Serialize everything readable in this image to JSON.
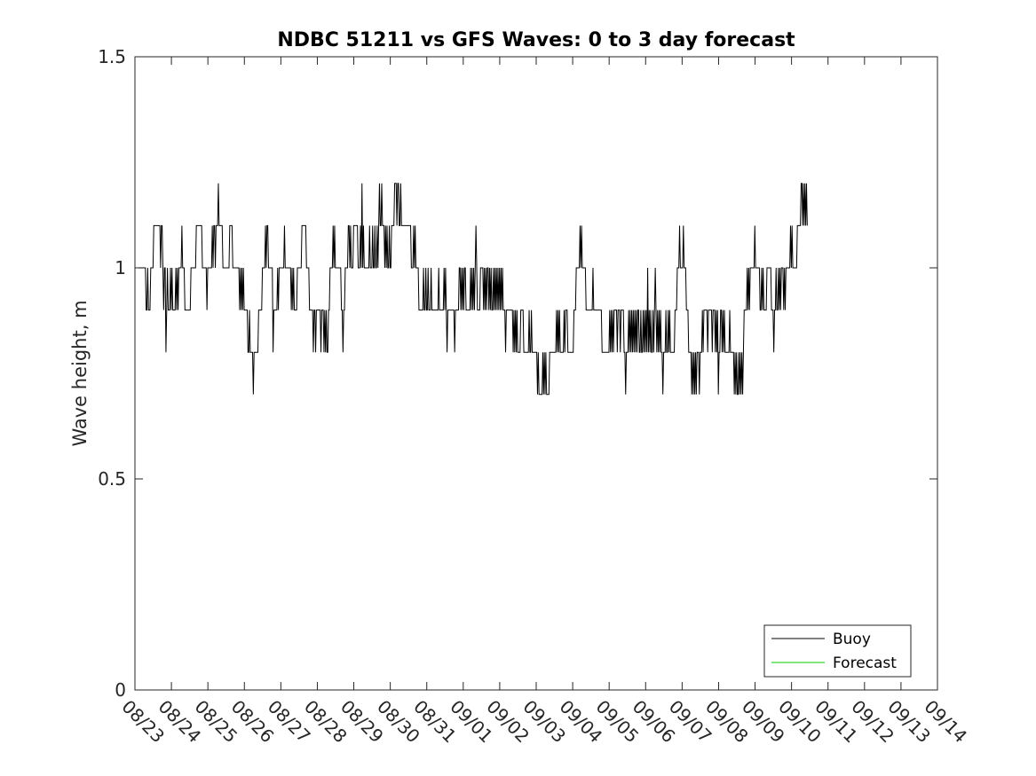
{
  "chart_data": {
    "type": "line",
    "title": "NDBC 51211 vs GFS Waves: 0 to 3 day forecast",
    "xlabel": "",
    "ylabel": "Wave height, m",
    "ylim": [
      0,
      1.5
    ],
    "yticks": [
      0,
      0.5,
      1,
      1.5
    ],
    "ytick_labels": [
      "0",
      "0.5",
      "1",
      "1.5"
    ],
    "xlim_days": [
      0,
      22
    ],
    "xtick_labels": [
      "08/23",
      "08/24",
      "08/25",
      "08/26",
      "08/27",
      "08/28",
      "08/29",
      "08/30",
      "08/31",
      "09/01",
      "09/02",
      "09/03",
      "09/04",
      "09/05",
      "09/06",
      "09/07",
      "09/08",
      "09/09",
      "09/10",
      "09/11",
      "09/12",
      "09/13",
      "09/14"
    ],
    "legend_position": "bottom-right",
    "series": [
      {
        "name": "Buoy",
        "color": "#000000",
        "x_start_day": 0.1,
        "x_step_day": 0.02083,
        "values": [
          1.0,
          1.0,
          1.0,
          1.0,
          1.0,
          1.0,
          1.0,
          1.0,
          1.0,
          1.0,
          0.9,
          0.9,
          1.0,
          0.9,
          0.9,
          0.9,
          1.0,
          1.0,
          1.0,
          1.0,
          1.1,
          1.1,
          1.1,
          1.1,
          1.1,
          1.1,
          1.1,
          1.1,
          1.1,
          1.0,
          1.1,
          1.1,
          1.0,
          0.9,
          1.0,
          1.0,
          0.8,
          0.9,
          1.0,
          0.9,
          0.9,
          0.9,
          1.0,
          0.9,
          1.0,
          0.9,
          0.9,
          0.9,
          0.9,
          1.0,
          0.9,
          1.0,
          0.9,
          1.0,
          1.0,
          1.0,
          1.0,
          1.1,
          1.0,
          1.0,
          1.0,
          0.9,
          0.9,
          0.9,
          0.9,
          0.9,
          0.9,
          0.9,
          0.9,
          1.0,
          1.0,
          1.0,
          1.0,
          1.0,
          1.0,
          1.0,
          1.1,
          1.1,
          1.1,
          1.1,
          1.1,
          1.1,
          1.1,
          1.1,
          1.0,
          1.0,
          1.0,
          1.0,
          1.0,
          1.0,
          0.9,
          1.0,
          1.0,
          1.0,
          1.0,
          1.0,
          1.0,
          1.1,
          1.0,
          1.1,
          1.1,
          1.0,
          1.1,
          1.1,
          1.1,
          1.2,
          1.1,
          1.1,
          1.1,
          1.1,
          1.1,
          1.0,
          1.0,
          1.0,
          1.0,
          1.0,
          1.0,
          1.0,
          1.0,
          1.0,
          1.1,
          1.1,
          1.1,
          1.1,
          1.0,
          1.0,
          1.0,
          1.0,
          1.0,
          1.0,
          1.0,
          1.0,
          1.0,
          0.9,
          1.0,
          0.9,
          1.0,
          0.9,
          1.0,
          0.9,
          0.9,
          0.9,
          0.9,
          0.9,
          0.8,
          0.8,
          0.9,
          0.8,
          0.8,
          0.8,
          0.8,
          0.7,
          0.8,
          0.8,
          0.8,
          0.8,
          0.8,
          0.8,
          0.9,
          0.9,
          0.9,
          0.9,
          0.9,
          1.0,
          1.0,
          1.0,
          1.0,
          1.1,
          1.0,
          1.1,
          1.1,
          1.0,
          1.0,
          1.0,
          1.0,
          1.0,
          1.0,
          0.8,
          0.9,
          0.9,
          0.9,
          0.9,
          0.9,
          1.0,
          0.9,
          1.0,
          1.0,
          1.0,
          1.0,
          1.0,
          1.0,
          1.0,
          1.1,
          1.0,
          1.0,
          1.0,
          1.0,
          1.0,
          1.0,
          1.0,
          1.0,
          0.9,
          1.0,
          0.9,
          1.0,
          0.9,
          0.9,
          0.9,
          0.9,
          1.0,
          1.0,
          1.0,
          1.0,
          1.0,
          1.0,
          1.1,
          1.1,
          1.1,
          1.1,
          1.1,
          1.1,
          1.0,
          1.0,
          1.0,
          1.0,
          0.9,
          0.9,
          0.9,
          0.9,
          0.9,
          0.8,
          0.9,
          0.9,
          0.8,
          0.9,
          0.9,
          0.9,
          0.9,
          0.9,
          0.9,
          0.8,
          0.9,
          0.9,
          0.9,
          0.8,
          0.9,
          0.8,
          0.9,
          0.8,
          0.8,
          0.9,
          0.9,
          1.0,
          1.0,
          1.0,
          1.0,
          1.1,
          1.0,
          1.1,
          1.0,
          1.0,
          1.0,
          1.0,
          1.0,
          1.0,
          1.0,
          1.0,
          0.9,
          0.9,
          0.8,
          0.9,
          0.9,
          1.0,
          1.0,
          1.0,
          1.0,
          1.1,
          1.1,
          1.0,
          1.1,
          1.0,
          1.0,
          1.0,
          1.1,
          1.1,
          1.1,
          1.1,
          1.1,
          1.1,
          1.0,
          1.0,
          1.0,
          1.1,
          1.0,
          1.2,
          1.0,
          1.1,
          1.0,
          1.0,
          1.0,
          1.0,
          1.0,
          1.0,
          1.0,
          1.1,
          1.0,
          1.0,
          1.0,
          1.1,
          1.0,
          1.0,
          1.1,
          1.0,
          1.0,
          1.1,
          1.0,
          1.1,
          1.2,
          1.1,
          1.1,
          1.2,
          1.1,
          1.1,
          1.1,
          1.0,
          1.1,
          1.0,
          1.1,
          1.0,
          1.0,
          1.1,
          1.0,
          1.0,
          1.1,
          1.1,
          1.1,
          1.1,
          1.2,
          1.2,
          1.2,
          1.1,
          1.2,
          1.2,
          1.1,
          1.1,
          1.2,
          1.1,
          1.1,
          1.1,
          1.1,
          1.1,
          1.1,
          1.1,
          1.1,
          1.1,
          1.1,
          1.1,
          1.1,
          1.1,
          1.0,
          1.0,
          1.0,
          1.1,
          1.0,
          1.1,
          1.0,
          1.0,
          1.0,
          1.0,
          0.9,
          0.9,
          0.9,
          0.9,
          0.9,
          0.9,
          1.0,
          0.9,
          0.9,
          1.0,
          0.9,
          0.9,
          1.0,
          0.9,
          0.9,
          0.9,
          1.0,
          0.9,
          0.9,
          0.9,
          0.9,
          0.9,
          0.9,
          0.9,
          0.9,
          0.9,
          1.0,
          0.9,
          0.9,
          0.9,
          0.9,
          0.9,
          0.9,
          1.0,
          0.9,
          1.0,
          0.9,
          0.8,
          0.9,
          0.9,
          0.9,
          0.9,
          0.9,
          0.9,
          0.9,
          0.9,
          0.9,
          0.8,
          0.9,
          0.9,
          0.9,
          0.9,
          0.9,
          1.0,
          1.0,
          0.9,
          1.0,
          0.9,
          1.0,
          0.9,
          1.0,
          1.0,
          0.9,
          0.9,
          0.9,
          0.9,
          0.9,
          0.9,
          1.0,
          0.9,
          1.0,
          0.9,
          1.0,
          0.9,
          1.0,
          1.1,
          1.0,
          0.9,
          0.9,
          0.9,
          0.9,
          1.0,
          1.0,
          1.0,
          1.0,
          0.9,
          1.0,
          0.9,
          1.0,
          0.9,
          1.0,
          1.0,
          0.9,
          1.0,
          0.9,
          1.0,
          0.9,
          0.9,
          1.0,
          0.9,
          1.0,
          0.9,
          1.0,
          0.9,
          1.0,
          0.9,
          1.0,
          0.9,
          1.0,
          0.9,
          1.0,
          0.9,
          0.9,
          0.9,
          0.8,
          0.9,
          0.9,
          0.9,
          0.9,
          0.9,
          0.9,
          0.9,
          0.9,
          0.9,
          0.8,
          0.9,
          0.8,
          0.9,
          0.8,
          0.9,
          0.8,
          0.8,
          0.8,
          0.8,
          0.9,
          0.9,
          0.9,
          0.9,
          0.8,
          0.8,
          0.8,
          0.8,
          0.8,
          0.8,
          0.8,
          0.9,
          0.8,
          0.8,
          0.9,
          0.8,
          0.8,
          0.8,
          0.8,
          0.8,
          0.8,
          0.8,
          0.7,
          0.8,
          0.7,
          0.7,
          0.7,
          0.7,
          0.7,
          0.8,
          0.7,
          0.8,
          0.7,
          0.8,
          0.7,
          0.7,
          0.7,
          0.7,
          0.8,
          0.8,
          0.8,
          0.8,
          0.8,
          0.8,
          0.8,
          0.8,
          0.8,
          0.9,
          0.8,
          0.9,
          0.8,
          0.9,
          0.8,
          0.8,
          0.8,
          0.8,
          0.8,
          0.9,
          0.8,
          0.9,
          0.9,
          0.9,
          0.8,
          0.8,
          0.8,
          0.8,
          0.8,
          0.8,
          0.8,
          0.8,
          0.9,
          0.9,
          0.9,
          1.0,
          1.0,
          1.0,
          1.0,
          1.0,
          1.1,
          1.0,
          1.1,
          1.0,
          1.0,
          1.0,
          1.0,
          1.0,
          0.9,
          0.9,
          0.9,
          0.9,
          0.9,
          0.9,
          0.9,
          0.9,
          0.9,
          1.0,
          0.9,
          0.9,
          0.9,
          0.9,
          0.9,
          0.9,
          0.9,
          0.9,
          0.9,
          0.9,
          0.9,
          0.8,
          0.8,
          0.8,
          0.8,
          0.8,
          0.8,
          0.8,
          0.8,
          0.8,
          0.8,
          0.9,
          0.8,
          0.9,
          0.8,
          0.9,
          0.8,
          0.9,
          0.9,
          0.9,
          0.9,
          0.8,
          0.9,
          0.9,
          0.9,
          0.8,
          0.9,
          0.9,
          0.9,
          0.9,
          0.8,
          0.8,
          0.7,
          0.8,
          0.8,
          0.8,
          0.9,
          0.8,
          0.9,
          0.8,
          0.9,
          0.8,
          0.9,
          0.8,
          0.9,
          0.8,
          0.9,
          0.8,
          0.9,
          0.9,
          0.8,
          0.8,
          0.9,
          0.8,
          0.8,
          0.9,
          0.8,
          0.9,
          0.8,
          0.9,
          0.8,
          1.0,
          0.8,
          0.9,
          0.8,
          0.9,
          0.8,
          0.8,
          0.9,
          0.8,
          0.9,
          1.0,
          0.9,
          0.8,
          0.9,
          0.8,
          0.9,
          0.8,
          0.9,
          0.8,
          0.8,
          0.7,
          0.8,
          0.8,
          0.8,
          0.9,
          0.8,
          0.8,
          0.9,
          0.8,
          0.9,
          0.8,
          0.8,
          0.8,
          0.8,
          0.8,
          0.8,
          0.9,
          0.9,
          0.9,
          1.0,
          1.0,
          1.0,
          1.1,
          1.0,
          1.0,
          1.0,
          1.0,
          1.1,
          1.0,
          1.0,
          1.0,
          0.9,
          0.9,
          0.9,
          0.8,
          0.8,
          0.8,
          0.8,
          0.7,
          0.8,
          0.7,
          0.8,
          0.7,
          0.8,
          0.7,
          0.8,
          0.8,
          0.8,
          0.7,
          0.8,
          0.8,
          0.8,
          0.9,
          0.8,
          0.9,
          0.9,
          0.9,
          0.9,
          0.9,
          0.8,
          0.9,
          0.9,
          0.9,
          0.9,
          0.9,
          0.8,
          0.9,
          0.9,
          0.9,
          0.8,
          0.9,
          0.8,
          0.9,
          0.7,
          0.8,
          0.8,
          0.9,
          0.9,
          0.8,
          0.9,
          0.8,
          0.9,
          0.8,
          0.8,
          0.8,
          0.8,
          0.8,
          0.8,
          0.9,
          0.8,
          0.8,
          0.8,
          0.8,
          0.8,
          0.7,
          0.8,
          0.7,
          0.8,
          0.7,
          0.7,
          0.8,
          0.7,
          0.8,
          0.7,
          0.8,
          0.7,
          0.8,
          0.9,
          0.9,
          0.9,
          0.9,
          1.0,
          0.9,
          1.0,
          0.9,
          1.0,
          1.0,
          1.0,
          1.0,
          1.0,
          1.0,
          1.1,
          1.0,
          1.0,
          1.0,
          1.0,
          1.0,
          1.0,
          0.9,
          0.9,
          1.0,
          0.9,
          1.0,
          0.9,
          0.9,
          0.9,
          0.9,
          1.0,
          1.0,
          1.0,
          1.0,
          1.0,
          1.0,
          0.9,
          0.9,
          0.9,
          0.8,
          0.9,
          0.9,
          1.0,
          0.9,
          0.9,
          1.0,
          0.9,
          1.0,
          0.9,
          1.0,
          1.0,
          1.0,
          0.9,
          1.0,
          0.9,
          1.0,
          1.0,
          1.0,
          1.0,
          1.0,
          1.0,
          1.1,
          1.0,
          1.1,
          1.0,
          1.0,
          1.0,
          1.0,
          1.0,
          1.0,
          1.1,
          1.1,
          1.1,
          1.1,
          1.1,
          1.2,
          1.2,
          1.1,
          1.2,
          1.1,
          1.2,
          1.1,
          1.2,
          1.1
        ]
      },
      {
        "name": "Forecast",
        "color": "#00cc00",
        "values": []
      }
    ]
  }
}
